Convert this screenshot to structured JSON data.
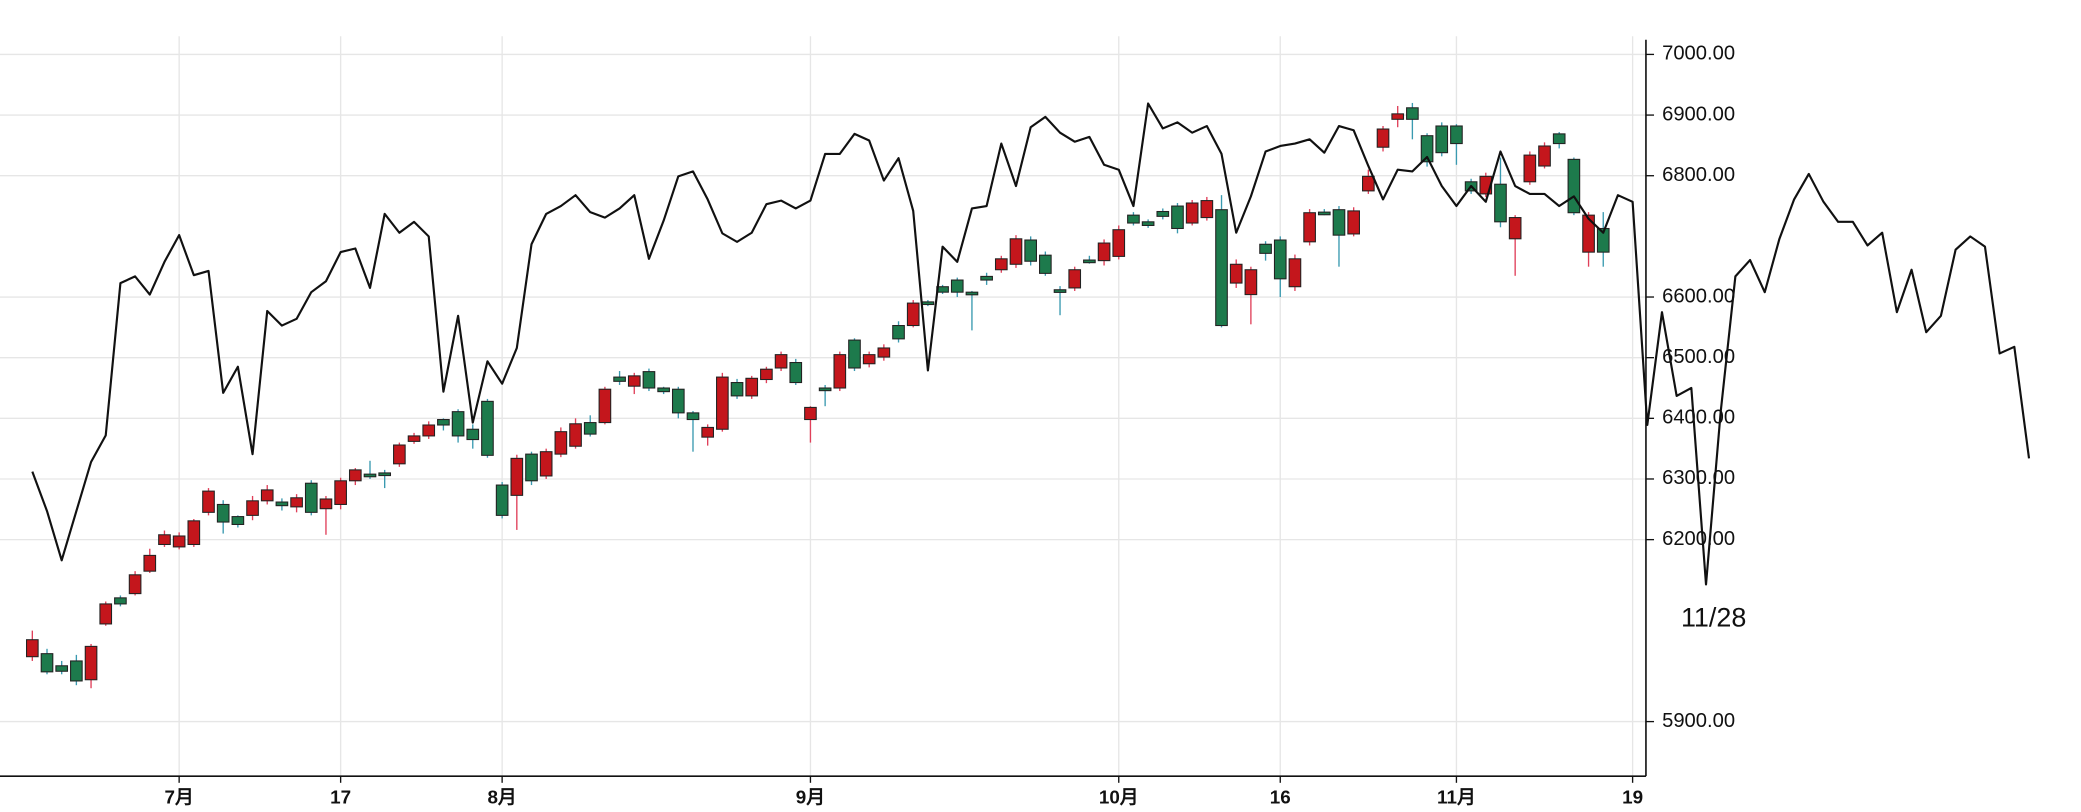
{
  "chart_data": {
    "type": "candlestick",
    "categories": [
      null,
      null,
      null,
      null,
      null,
      null,
      null,
      null,
      null,
      null,
      "7月",
      null,
      null,
      null,
      null,
      null,
      null,
      null,
      null,
      null,
      null,
      "17",
      null,
      null,
      null,
      null,
      null,
      null,
      null,
      null,
      null,
      null,
      "8月",
      null,
      null,
      null,
      null,
      null,
      null,
      null,
      null,
      null,
      null,
      null,
      null,
      null,
      null,
      null,
      null,
      null,
      null,
      null,
      null,
      "9月",
      null,
      null,
      null,
      null,
      null,
      null,
      null,
      null,
      null,
      null,
      null,
      null,
      null,
      null,
      null,
      null,
      null,
      null,
      null,
      null,
      "10月",
      null,
      null,
      null,
      null,
      null,
      null,
      null,
      null,
      null,
      null,
      "16",
      null,
      null,
      null,
      null,
      null,
      null,
      null,
      null,
      null,
      null,
      null,
      "11月",
      null,
      null,
      null,
      null,
      null,
      null,
      null,
      null,
      null,
      null,
      null,
      "19",
      null,
      null,
      null,
      null,
      null,
      null,
      null,
      null,
      null,
      null,
      null,
      null,
      null,
      null,
      null,
      null,
      null,
      null,
      null,
      null,
      null,
      null,
      null,
      null,
      null,
      null,
      null
    ],
    "open": [
      6007,
      6012,
      5992,
      6000,
      5969,
      6061,
      6104,
      6111,
      6148,
      6192,
      6188,
      6192,
      6245,
      6258,
      6238,
      6240,
      6264,
      6262,
      6254,
      6293,
      6251,
      6258,
      6297,
      6308,
      6310,
      6325,
      6362,
      6371,
      6398,
      6411,
      6382,
      6428,
      6290,
      6273,
      6341,
      6305,
      6341,
      6354,
      6393,
      6393,
      6468,
      6453,
      6477,
      6450,
      6448,
      6409,
      6369,
      6382,
      6459,
      6437,
      6464,
      6483,
      6492,
      6398,
      6450,
      6450,
      6529,
      6490,
      6501,
      6553,
      6553,
      6592,
      6617,
      6628,
      6608,
      6634,
      6645,
      6654,
      6694,
      6669,
      6612,
      6615,
      6661,
      6660,
      6667,
      6735,
      6724,
      6741,
      6750,
      6722,
      6731,
      6744,
      6623,
      6604,
      6687,
      6694,
      6617,
      6691,
      6740,
      6744,
      6704,
      6775,
      6847,
      6893,
      6912,
      6866,
      6882,
      6882,
      6790,
      6770,
      6786,
      6696,
      6790,
      6816,
      6869,
      6827,
      6674,
      6713,
      null,
      null,
      null,
      null,
      null,
      null,
      null,
      null,
      null,
      null,
      null,
      null,
      null,
      null,
      null,
      null,
      null,
      null,
      null,
      null,
      null,
      null,
      null,
      null,
      null,
      null,
      null,
      null,
      null
    ],
    "close": [
      6035,
      5982,
      5983,
      5967,
      6024,
      6094,
      6094,
      6142,
      6174,
      6208,
      6206,
      6231,
      6280,
      6229,
      6225,
      6264,
      6282,
      6256,
      6269,
      6245,
      6267,
      6297,
      6315,
      6304,
      6308,
      6356,
      6371,
      6389,
      6389,
      6371,
      6365,
      6339,
      6240,
      6334,
      6297,
      6345,
      6378,
      6391,
      6374,
      6448,
      6461,
      6470,
      6450,
      6444,
      6409,
      6398,
      6385,
      6468,
      6437,
      6466,
      6481,
      6505,
      6459,
      6418,
      6446,
      6505,
      6483,
      6505,
      6516,
      6531,
      6590,
      6590,
      6608,
      6608,
      6604,
      6628,
      6663,
      6696,
      6659,
      6639,
      6610,
      6645,
      6660,
      6689,
      6711,
      6722,
      6718,
      6733,
      6713,
      6755,
      6759,
      6553,
      6654,
      6645,
      6672,
      6630,
      6663,
      6739,
      6739,
      6702,
      6742,
      6799,
      6877,
      6902,
      6893,
      6823,
      6838,
      6853,
      6775,
      6799,
      6724,
      6731,
      6834,
      6849,
      6853,
      6739,
      6735,
      6674,
      null,
      null,
      null,
      null,
      null,
      null,
      null,
      null,
      null,
      null,
      null,
      null,
      null,
      null,
      null,
      null,
      null,
      null,
      null,
      null,
      null,
      null,
      null,
      null,
      null,
      null,
      null,
      null,
      null
    ],
    "high": [
      6050,
      6020,
      6000,
      6010,
      6028,
      6098,
      6108,
      6148,
      6185,
      6215,
      6212,
      6234,
      6285,
      6265,
      6240,
      6272,
      6290,
      6268,
      6275,
      6298,
      6272,
      6302,
      6318,
      6330,
      6315,
      6360,
      6376,
      6395,
      6400,
      6415,
      6390,
      6432,
      6295,
      6340,
      6345,
      6350,
      6385,
      6400,
      6405,
      6452,
      6478,
      6475,
      6482,
      6452,
      6452,
      6412,
      6390,
      6475,
      6465,
      6470,
      6485,
      6510,
      6498,
      6420,
      6455,
      6510,
      6532,
      6510,
      6522,
      6560,
      6595,
      6595,
      6620,
      6632,
      6610,
      6640,
      6668,
      6702,
      6700,
      6675,
      6618,
      6650,
      6668,
      6695,
      6718,
      6740,
      6728,
      6746,
      6755,
      6760,
      6765,
      6768,
      6662,
      6650,
      6692,
      6700,
      6670,
      6745,
      6745,
      6750,
      6748,
      6810,
      6882,
      6915,
      6920,
      6870,
      6888,
      6885,
      6795,
      6805,
      6830,
      6735,
      6840,
      6855,
      6872,
      6830,
      6740,
      6740,
      null,
      null,
      null,
      null,
      null,
      null,
      null,
      null,
      null,
      null,
      null,
      null,
      null,
      null,
      null,
      null,
      null,
      null,
      null,
      null,
      null,
      null,
      null,
      null,
      null,
      null,
      null,
      null,
      null
    ],
    "low": [
      6000,
      5978,
      5978,
      5960,
      5955,
      6058,
      6090,
      6108,
      6145,
      6188,
      6184,
      6188,
      6240,
      6210,
      6220,
      6232,
      6258,
      6248,
      6245,
      6240,
      6208,
      6250,
      6290,
      6300,
      6285,
      6320,
      6358,
      6366,
      6380,
      6360,
      6350,
      6335,
      6235,
      6216,
      6290,
      6300,
      6336,
      6350,
      6370,
      6390,
      6455,
      6440,
      6445,
      6440,
      6400,
      6345,
      6355,
      6378,
      6432,
      6432,
      6458,
      6478,
      6455,
      6360,
      6420,
      6445,
      6478,
      6484,
      6495,
      6525,
      6550,
      6585,
      6605,
      6600,
      6545,
      6620,
      6640,
      6648,
      6652,
      6635,
      6570,
      6610,
      6655,
      6652,
      6662,
      6718,
      6714,
      6728,
      6705,
      6718,
      6726,
      6550,
      6615,
      6555,
      6660,
      6600,
      6610,
      6685,
      6735,
      6650,
      6700,
      6770,
      6840,
      6880,
      6860,
      6815,
      6832,
      6818,
      6770,
      6765,
      6715,
      6635,
      6785,
      6812,
      6845,
      6735,
      6650,
      6650,
      null,
      null,
      null,
      null,
      null,
      null,
      null,
      null,
      null,
      null,
      null,
      null,
      null,
      null,
      null,
      null,
      null,
      null,
      null,
      null,
      null,
      null,
      null,
      null,
      null,
      null,
      null,
      null,
      null
    ],
    "up_color": "#c4161c",
    "down_color": "#1d7a4c",
    "series": [
      {
        "color": "#111111",
        "values": [
          6312,
          6247,
          6166,
          6247,
          6328,
          6372,
          6623,
          6634,
          6604,
          6658,
          6702,
          6636,
          6643,
          6442,
          6485,
          6341,
          6577,
          6553,
          6564,
          6608,
          6626,
          6674,
          6680,
          6615,
          6737,
          6706,
          6724,
          6700,
          6444,
          6569,
          6393,
          6494,
          6457,
          6516,
          6687,
          6737,
          6750,
          6768,
          6740,
          6731,
          6746,
          6768,
          6663,
          6726,
          6799,
          6807,
          6761,
          6705,
          6691,
          6706,
          6753,
          6759,
          6746,
          6759,
          6836,
          6836,
          6869,
          6858,
          6792,
          6829,
          6742,
          6479,
          6683,
          6658,
          6746,
          6750,
          6853,
          6783,
          6880,
          6897,
          6871,
          6856,
          6864,
          6818,
          6810,
          6750,
          6919,
          6878,
          6888,
          6871,
          6882,
          6836,
          6706,
          6766,
          6840,
          6849,
          6853,
          6860,
          6838,
          6882,
          6875,
          6816,
          6761,
          6810,
          6807,
          6831,
          6783,
          6750,
          6783,
          6757,
          6840,
          6783,
          6770,
          6770,
          6750,
          6766,
          6729,
          6706,
          6768,
          6757,
          6389,
          6575,
          6437,
          6450,
          6126,
          6411,
          6634,
          6661,
          6608,
          6696,
          6761,
          6803,
          6757,
          6724,
          6724,
          6685,
          6706,
          6575,
          6645,
          6542,
          6569,
          6678,
          6700,
          6683,
          6507,
          6518,
          6334
        ]
      }
    ],
    "ylim": [
      5810,
      7030
    ],
    "yticks": [
      {
        "value": 7000,
        "label": "7000.00"
      },
      {
        "value": 6900,
        "label": "6900.00"
      },
      {
        "value": 6800,
        "label": "6800.00"
      },
      {
        "value": 6600,
        "label": "6600.00"
      },
      {
        "value": 6500,
        "label": "6500.00"
      },
      {
        "value": 6400,
        "label": "6400.00"
      },
      {
        "value": 6300,
        "label": "6300.00"
      },
      {
        "value": 6200,
        "label": "6200.00"
      },
      {
        "value": 5900,
        "label": "5900.00"
      }
    ],
    "grid": true,
    "annotation": "11/28"
  }
}
